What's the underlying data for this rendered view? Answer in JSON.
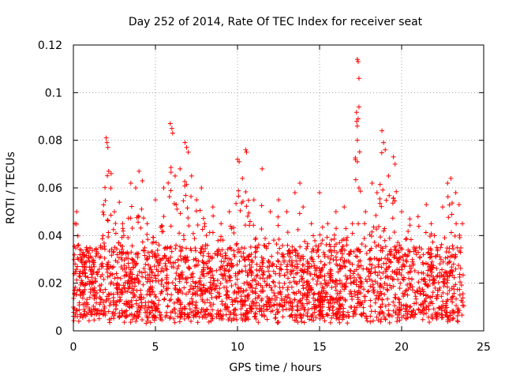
{
  "chart_data": {
    "type": "scatter",
    "title": "Day 252 of 2014, Rate Of TEC Index for receiver seat",
    "xlabel": "GPS time / hours",
    "ylabel": "ROTI / TECUs",
    "xlim": [
      0,
      25
    ],
    "ylim": [
      0,
      0.12
    ],
    "xticks": [
      "0",
      "5",
      "10",
      "15",
      "20",
      "25"
    ],
    "yticks": [
      "0",
      "0.02",
      "0.04",
      "0.06",
      "0.08",
      "0.1",
      "0.12"
    ],
    "grid": true,
    "marker": "+",
    "color": "#ff0000",
    "series": [
      {
        "name": "ROTI",
        "points": [
          [
            0.1,
            0.045
          ],
          [
            0.2,
            0.05
          ],
          [
            0.3,
            0.03
          ],
          [
            0.8,
            0.035
          ],
          [
            1.2,
            0.02
          ],
          [
            1.8,
            0.04
          ],
          [
            2.0,
            0.081
          ],
          [
            2.05,
            0.079
          ],
          [
            2.1,
            0.077
          ],
          [
            2.15,
            0.067
          ],
          [
            2.3,
            0.066
          ],
          [
            2.5,
            0.05
          ],
          [
            2.8,
            0.054
          ],
          [
            3.0,
            0.045
          ],
          [
            3.5,
            0.062
          ],
          [
            3.8,
            0.06
          ],
          [
            4.0,
            0.067
          ],
          [
            4.2,
            0.063
          ],
          [
            4.5,
            0.045
          ],
          [
            5.0,
            0.055
          ],
          [
            5.5,
            0.06
          ],
          [
            5.9,
            0.087
          ],
          [
            6.0,
            0.085
          ],
          [
            6.05,
            0.083
          ],
          [
            6.2,
            0.065
          ],
          [
            6.5,
            0.068
          ],
          [
            6.8,
            0.079
          ],
          [
            6.9,
            0.077
          ],
          [
            7.0,
            0.075
          ],
          [
            7.2,
            0.065
          ],
          [
            7.5,
            0.055
          ],
          [
            7.8,
            0.06
          ],
          [
            8.0,
            0.045
          ],
          [
            8.5,
            0.052
          ],
          [
            9.0,
            0.045
          ],
          [
            9.5,
            0.05
          ],
          [
            10.0,
            0.072
          ],
          [
            10.1,
            0.071
          ],
          [
            10.3,
            0.064
          ],
          [
            10.5,
            0.076
          ],
          [
            10.55,
            0.075
          ],
          [
            11.0,
            0.055
          ],
          [
            11.5,
            0.068
          ],
          [
            12.0,
            0.05
          ],
          [
            12.5,
            0.055
          ],
          [
            13.0,
            0.05
          ],
          [
            13.5,
            0.058
          ],
          [
            13.8,
            0.062
          ],
          [
            14.0,
            0.052
          ],
          [
            14.5,
            0.045
          ],
          [
            15.0,
            0.058
          ],
          [
            15.5,
            0.045
          ],
          [
            16.0,
            0.05
          ],
          [
            16.5,
            0.052
          ],
          [
            17.0,
            0.045
          ],
          [
            17.3,
            0.114
          ],
          [
            17.35,
            0.113
          ],
          [
            17.4,
            0.106
          ],
          [
            17.4,
            0.094
          ],
          [
            17.35,
            0.089
          ],
          [
            17.3,
            0.086
          ],
          [
            17.3,
            0.08
          ],
          [
            17.3,
            0.071
          ],
          [
            17.4,
            0.06
          ],
          [
            17.8,
            0.05
          ],
          [
            18.2,
            0.062
          ],
          [
            18.5,
            0.058
          ],
          [
            18.8,
            0.084
          ],
          [
            18.9,
            0.079
          ],
          [
            19.0,
            0.076
          ],
          [
            19.2,
            0.065
          ],
          [
            19.5,
            0.073
          ],
          [
            19.6,
            0.07
          ],
          [
            20.0,
            0.05
          ],
          [
            20.5,
            0.047
          ],
          [
            21.0,
            0.048
          ],
          [
            21.5,
            0.053
          ],
          [
            21.8,
            0.045
          ],
          [
            22.0,
            0.04
          ],
          [
            22.5,
            0.052
          ],
          [
            22.8,
            0.062
          ],
          [
            23.0,
            0.064
          ],
          [
            23.3,
            0.058
          ],
          [
            23.5,
            0.053
          ],
          [
            23.7,
            0.045
          ]
        ],
        "bulk_range": {
          "x": [
            0,
            23.8
          ],
          "y_low": 0.005,
          "y_typical": 0.015,
          "y_high": 0.035
        }
      }
    ]
  }
}
